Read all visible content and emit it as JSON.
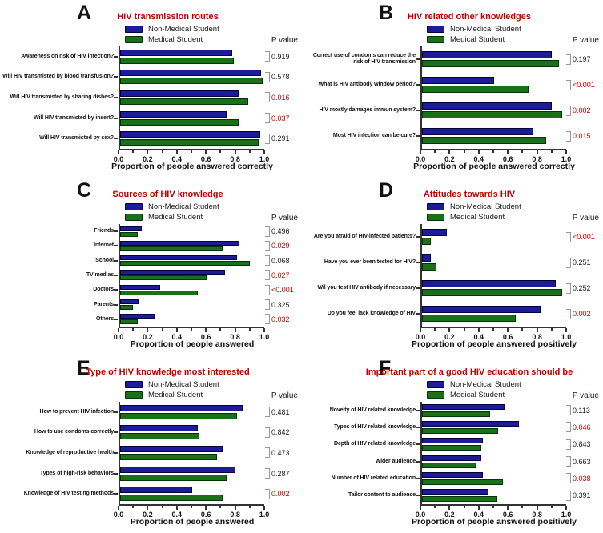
{
  "figure_legend": {
    "non_medical_label": "Non-Medical Student",
    "medical_label": "Medical Student",
    "p_value_header": "P value"
  },
  "colors": {
    "non_medical_fill": "#1C1C99",
    "non_medical_border": "#00003d",
    "medical_fill": "#1A701A",
    "medical_border": "#043304",
    "title_red": "#C00000",
    "significant_p": "#C00000",
    "normal_p": "#1a1a1a",
    "axis": "#333333"
  },
  "chart_data": [
    {
      "panel": "A",
      "type": "bar",
      "orientation": "horizontal",
      "title": "HIV transmission routes",
      "xlabel": "Proportion of people answered correctly",
      "xlim": [
        0,
        1.0
      ],
      "xtick_labels": [
        "0.0",
        "0.2",
        "0.4",
        "0.6",
        "0.8",
        "1.0"
      ],
      "legend_position": "top",
      "categories": [
        "Awareness on risk of HIV infection?",
        "Will HIV transmisted by blood transfusion?",
        "Will HIV transmisted by sharing dishes?",
        "Will HIV transmisted by insert?",
        "Will HIV transmisted by sex?"
      ],
      "series": [
        {
          "name": "Non-Medical Student",
          "values": [
            0.78,
            0.98,
            0.82,
            0.74,
            0.97
          ]
        },
        {
          "name": "Medical Student",
          "values": [
            0.79,
            0.99,
            0.89,
            0.82,
            0.96
          ]
        }
      ],
      "p_values": [
        "0.919",
        "0.578",
        "0.016",
        "0.037",
        "0.291"
      ],
      "p_significant": [
        false,
        false,
        true,
        true,
        false
      ]
    },
    {
      "panel": "B",
      "type": "bar",
      "orientation": "horizontal",
      "title": "HIV related other knowledges",
      "xlabel": "Proportion of people answered correctly",
      "xlim": [
        0,
        1.0
      ],
      "xtick_labels": [
        "0.0",
        "0.2",
        "0.4",
        "0.6",
        "0.8",
        "1.0"
      ],
      "legend_position": "top",
      "categories": [
        "Correct use of condoms can reduce the risk of HIV transmission",
        "What is HIV antibody window period?",
        "HIV mostly damages immun system?",
        "Most HIV infection can be cure?"
      ],
      "series": [
        {
          "name": "Non-Medical Student",
          "values": [
            0.9,
            0.5,
            0.9,
            0.77
          ]
        },
        {
          "name": "Medical Student",
          "values": [
            0.95,
            0.74,
            0.97,
            0.86
          ]
        }
      ],
      "p_values": [
        "0.197",
        "<0.001",
        "0.002",
        "0.015"
      ],
      "p_significant": [
        false,
        true,
        true,
        true
      ]
    },
    {
      "panel": "C",
      "type": "bar",
      "orientation": "horizontal",
      "title": "Sources of HIV knowledge",
      "xlabel": "Proportion of people answered",
      "xlim": [
        0,
        1.0
      ],
      "xtick_labels": [
        "0.0",
        "0.2",
        "0.4",
        "0.6",
        "0.8",
        "1.0"
      ],
      "legend_position": "top",
      "categories": [
        "Friends",
        "Internet",
        "School",
        "TV medias",
        "Doctors",
        "Parents",
        "Others"
      ],
      "series": [
        {
          "name": "Non-Medical Student",
          "values": [
            0.15,
            0.83,
            0.81,
            0.73,
            0.28,
            0.13,
            0.24
          ]
        },
        {
          "name": "Medical Student",
          "values": [
            0.12,
            0.71,
            0.9,
            0.6,
            0.54,
            0.09,
            0.12
          ]
        }
      ],
      "p_values": [
        "0.496",
        "0.029",
        "0.068",
        "0.027",
        "<0.001",
        "0.325",
        "0.032"
      ],
      "p_significant": [
        false,
        true,
        false,
        true,
        true,
        false,
        true
      ]
    },
    {
      "panel": "D",
      "type": "bar",
      "orientation": "horizontal",
      "title": "Attitudes towards HIV",
      "xlabel": "Proportion of people answered positively",
      "xlim": [
        0,
        1.0
      ],
      "xtick_labels": [
        "0.0",
        "0.2",
        "0.4",
        "0.6",
        "0.8",
        "1.0"
      ],
      "legend_position": "top",
      "categories": [
        "Are you afraid of HIV-infected patients?",
        "Have you ever been tested for HIV?",
        "Wil you test HIV antibody if necessary",
        "Do you feel lack knowledge of HIV"
      ],
      "series": [
        {
          "name": "Non-Medical Student",
          "values": [
            0.17,
            0.06,
            0.93,
            0.82
          ]
        },
        {
          "name": "Medical Student",
          "values": [
            0.06,
            0.1,
            0.97,
            0.65
          ]
        }
      ],
      "p_values": [
        "<0.001",
        "0.251",
        "0.252",
        "0.002"
      ],
      "p_significant": [
        true,
        false,
        false,
        true
      ]
    },
    {
      "panel": "E",
      "type": "bar",
      "orientation": "horizontal",
      "title": "Type of HIV knowledge most interested",
      "xlabel": "Proportion of people answered",
      "xlim": [
        0,
        1.0
      ],
      "xtick_labels": [
        "0.0",
        "0.2",
        "0.4",
        "0.6",
        "0.8",
        "1.0"
      ],
      "legend_position": "top",
      "categories": [
        "How to prevent HIV infection",
        "How to use condoms correctly",
        "Knowledge of reproductive health",
        "Types of high-risk behaviors",
        "Knowledge of HIV testing methods"
      ],
      "series": [
        {
          "name": "Non-Medical Student",
          "values": [
            0.85,
            0.54,
            0.71,
            0.8,
            0.5
          ]
        },
        {
          "name": "Medical Student",
          "values": [
            0.81,
            0.55,
            0.67,
            0.74,
            0.71
          ]
        }
      ],
      "p_values": [
        "0.481",
        "0.842",
        "0.473",
        "0.287",
        "0.002"
      ],
      "p_significant": [
        false,
        false,
        false,
        false,
        true
      ]
    },
    {
      "panel": "F",
      "type": "bar",
      "orientation": "horizontal",
      "title": "Important part of a good HIV education should be",
      "xlabel": "Proportion of people answered positively",
      "xlim": [
        0,
        1.0
      ],
      "xtick_labels": [
        "0.0",
        "0.2",
        "0.4",
        "0.6",
        "0.8",
        "1.0"
      ],
      "legend_position": "top",
      "categories": [
        "Novelty of HIV related knowledge",
        "Types of HIV related knowledge",
        "Depth of HIV related knowledge",
        "Wider audience",
        "Number of HIV related education",
        "Tailor content to audience"
      ],
      "series": [
        {
          "name": "Non-Medical Student",
          "values": [
            0.57,
            0.67,
            0.42,
            0.41,
            0.42,
            0.46
          ]
        },
        {
          "name": "Medical Student",
          "values": [
            0.47,
            0.53,
            0.41,
            0.38,
            0.56,
            0.52
          ]
        }
      ],
      "p_values": [
        "0.113",
        "0.046",
        "0.843",
        "0.663",
        "0.038",
        "0.391"
      ],
      "p_significant": [
        false,
        true,
        false,
        false,
        true,
        false
      ]
    }
  ]
}
